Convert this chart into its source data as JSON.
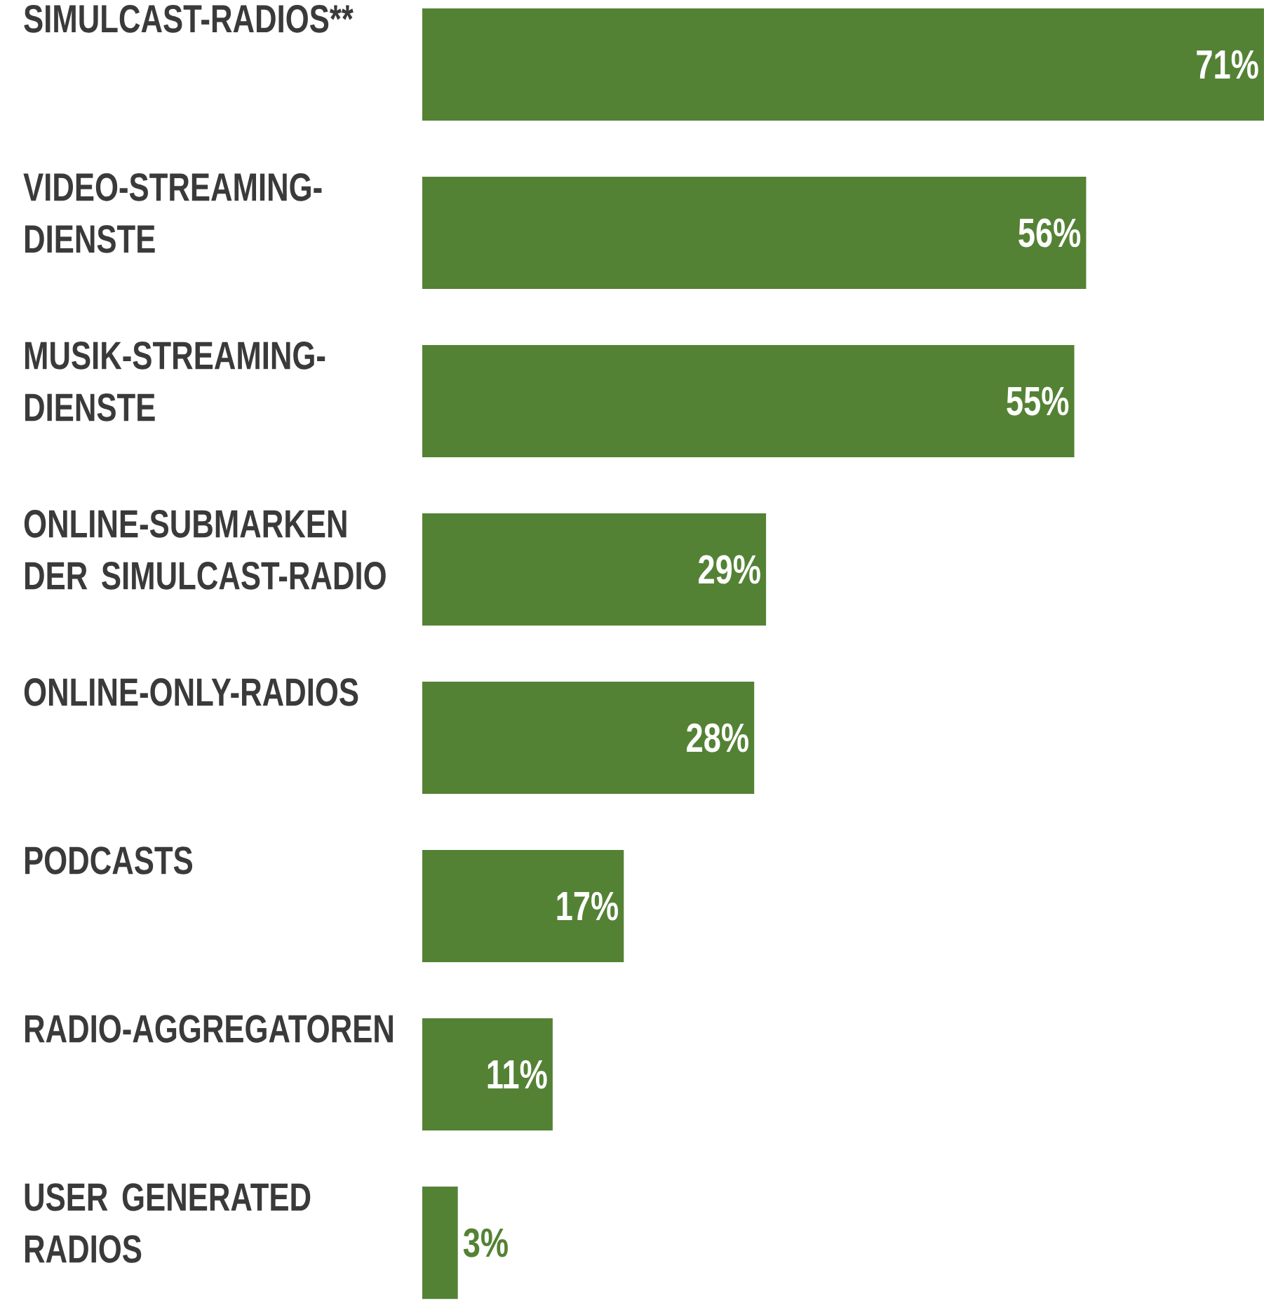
{
  "chart_data": {
    "type": "bar",
    "orientation": "horizontal",
    "categories": [
      "SIMULCAST-RADIOS**",
      "VIDEO-STREAMING-DIENSTE",
      "MUSIK-STREAMING-DIENSTE",
      "ONLINE-SUBMARKEN DER SIMULCAST-RADIO",
      "ONLINE-ONLY-RADIOS",
      "PODCASTS",
      "RADIO-AGGREGATOREN",
      "USER GENERATED RADIOS"
    ],
    "values": [
      71,
      56,
      55,
      29,
      28,
      17,
      11,
      3
    ],
    "value_labels": [
      "71%",
      "56%",
      "55%",
      "29%",
      "28%",
      "17%",
      "11%",
      "3%"
    ],
    "color": "#548235"
  }
}
